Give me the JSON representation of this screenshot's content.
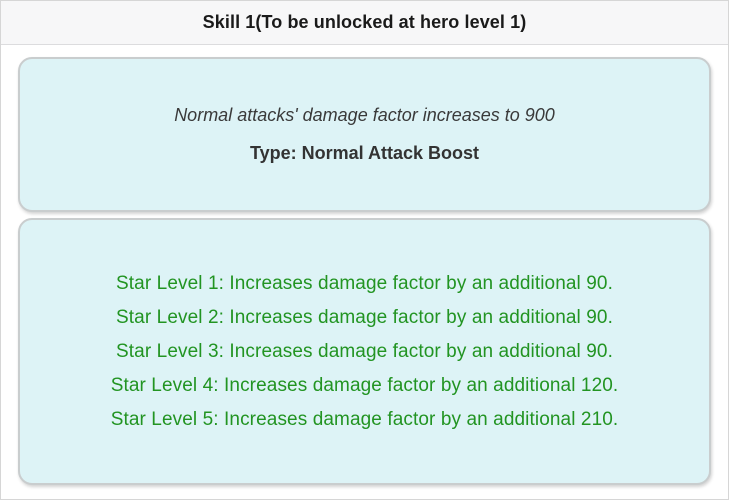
{
  "header": {
    "title": "Skill 1(To be unlocked at hero level 1)"
  },
  "skill_card": {
    "description": "Normal attacks' damage factor increases to 900",
    "type_label": "Type: Normal Attack Boost"
  },
  "star_levels": {
    "items": [
      "Star Level 1: Increases damage factor by an additional 90.",
      "Star Level 2: Increases damage factor by an additional 90.",
      "Star Level 3: Increases damage factor by an additional 90.",
      "Star Level 4: Increases damage factor by an additional 120.",
      "Star Level 5: Increases damage factor by an additional 210."
    ]
  },
  "colors": {
    "header_bg": "#f7f7f8",
    "page_border": "#d6d6d6",
    "card_bg": "#ddf3f6",
    "card_border": "#c9cdce",
    "green_text": "#229422",
    "title_text": "#1a1a1a",
    "body_text": "#3a3a3a"
  }
}
